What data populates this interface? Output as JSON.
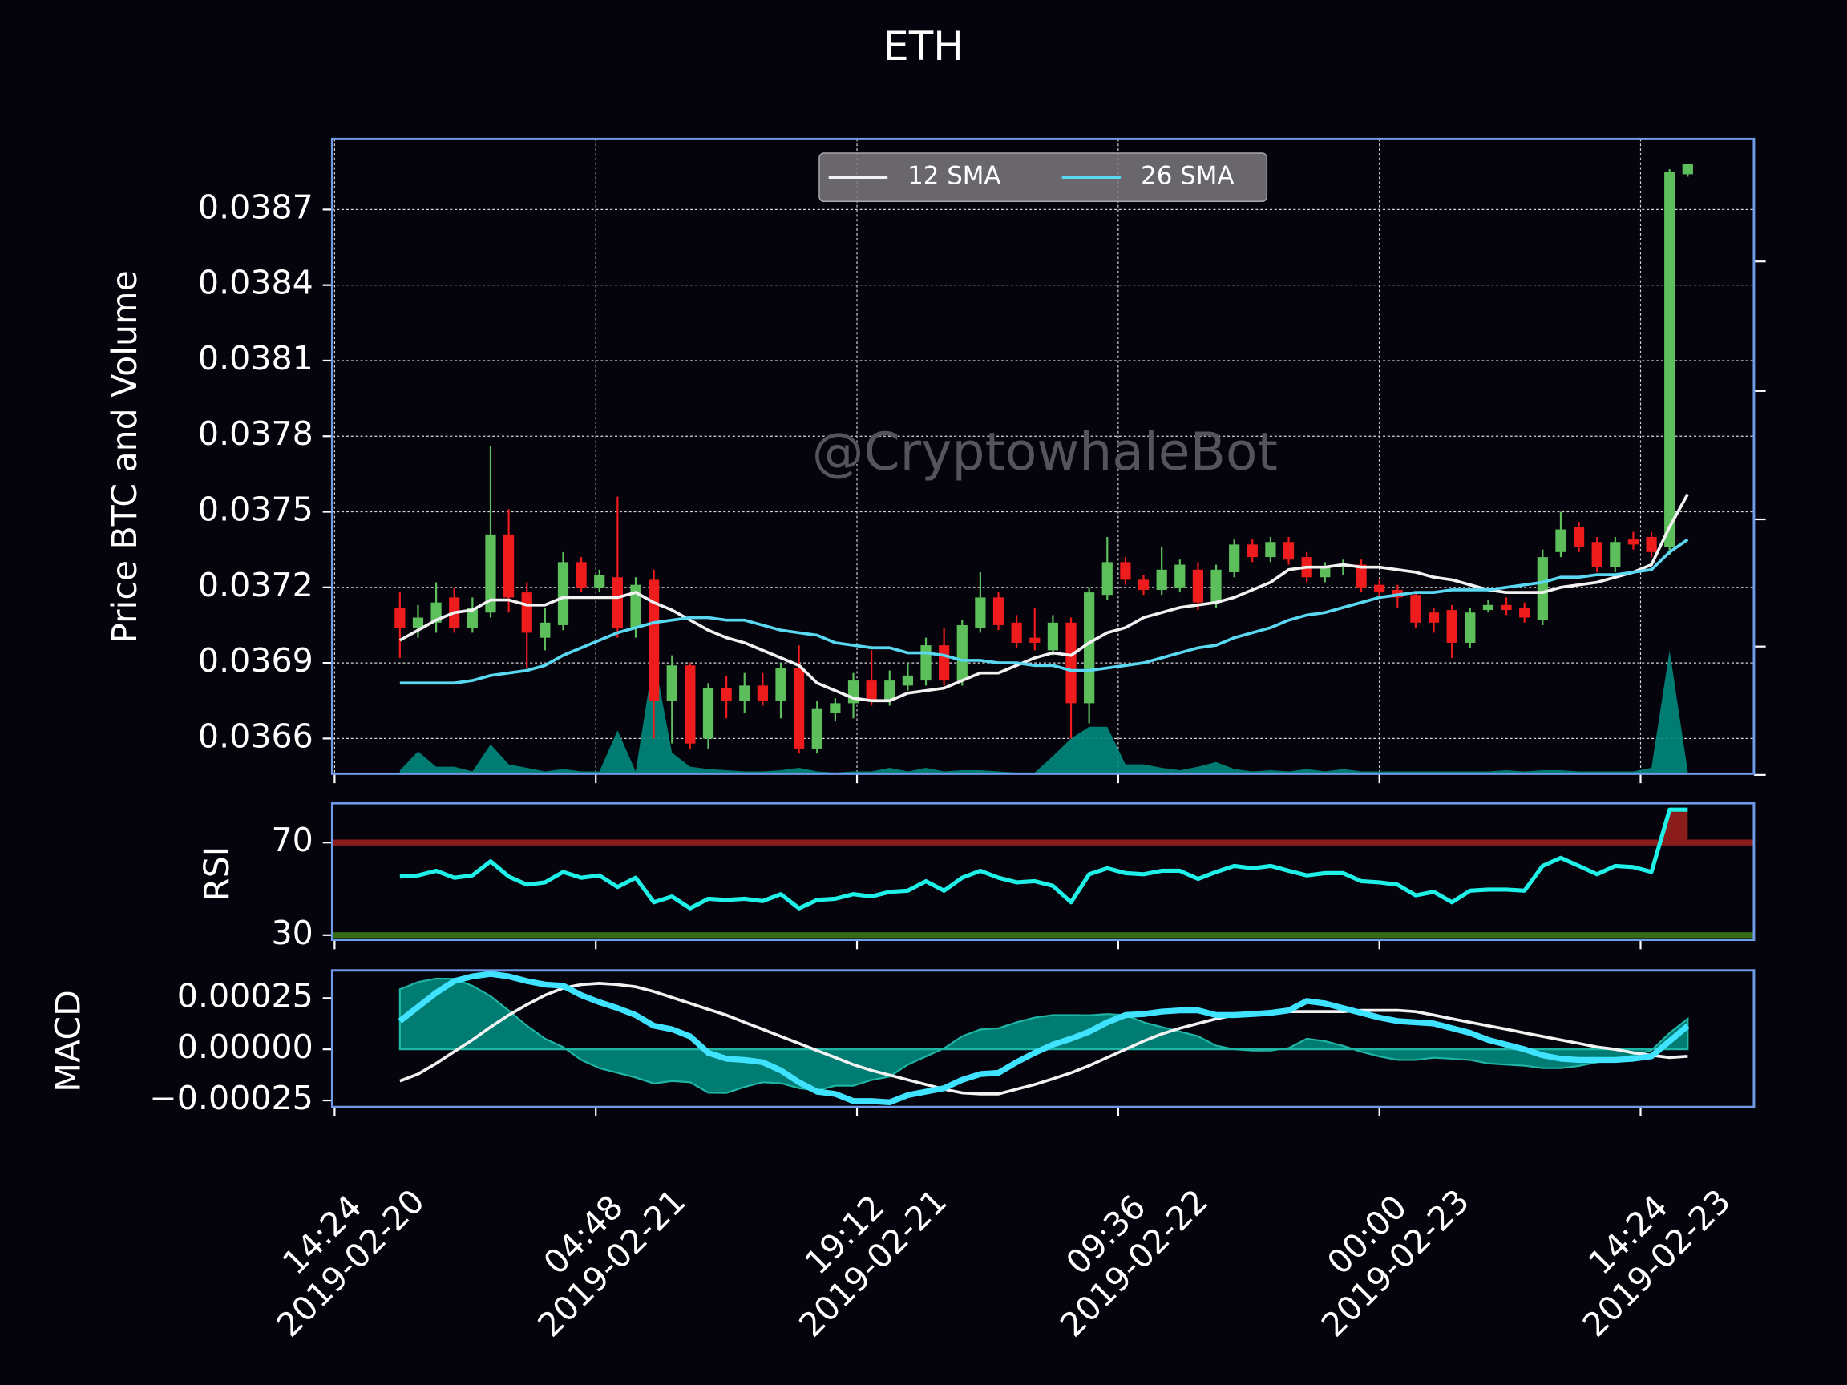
{
  "chart_data": [
    {
      "type": "candlestick",
      "title": "ETH",
      "ylabel": "Price BTC and Volume",
      "watermark": "@CryptowhaleBot",
      "x": [
        "2019-02-20 18:00",
        "2019-02-20 19:00",
        "2019-02-20 20:00",
        "2019-02-20 21:00",
        "2019-02-20 22:00",
        "2019-02-20 23:00",
        "2019-02-21 00:00",
        "2019-02-21 01:00",
        "2019-02-21 02:00",
        "2019-02-21 03:00",
        "2019-02-21 04:00",
        "2019-02-21 05:00",
        "2019-02-21 06:00",
        "2019-02-21 07:00",
        "2019-02-21 08:00",
        "2019-02-21 09:00",
        "2019-02-21 10:00",
        "2019-02-21 11:00",
        "2019-02-21 12:00",
        "2019-02-21 13:00",
        "2019-02-21 14:00",
        "2019-02-21 15:00",
        "2019-02-21 16:00",
        "2019-02-21 17:00",
        "2019-02-21 18:00",
        "2019-02-21 19:00",
        "2019-02-21 20:00",
        "2019-02-21 21:00",
        "2019-02-21 22:00",
        "2019-02-21 23:00",
        "2019-02-22 00:00",
        "2019-02-22 01:00",
        "2019-02-22 02:00",
        "2019-02-22 03:00",
        "2019-02-22 04:00",
        "2019-02-22 05:00",
        "2019-02-22 06:00",
        "2019-02-22 07:00",
        "2019-02-22 08:00",
        "2019-02-22 09:00",
        "2019-02-22 10:00",
        "2019-02-22 11:00",
        "2019-02-22 12:00",
        "2019-02-22 13:00",
        "2019-02-22 14:00",
        "2019-02-22 15:00",
        "2019-02-22 16:00",
        "2019-02-22 17:00",
        "2019-02-22 18:00",
        "2019-02-22 19:00",
        "2019-02-22 20:00",
        "2019-02-22 21:00",
        "2019-02-22 22:00",
        "2019-02-22 23:00",
        "2019-02-23 00:00",
        "2019-02-23 01:00",
        "2019-02-23 02:00",
        "2019-02-23 03:00",
        "2019-02-23 04:00",
        "2019-02-23 05:00",
        "2019-02-23 06:00",
        "2019-02-23 07:00",
        "2019-02-23 08:00",
        "2019-02-23 09:00",
        "2019-02-23 10:00",
        "2019-02-23 11:00",
        "2019-02-23 12:00",
        "2019-02-23 13:00",
        "2019-02-23 14:00",
        "2019-02-23 15:00",
        "2019-02-23 16:00",
        "2019-02-23 17:00"
      ],
      "open": [
        0.03712,
        0.03704,
        0.03706,
        0.03716,
        0.03704,
        0.0371,
        0.03741,
        0.03718,
        0.037,
        0.03705,
        0.0373,
        0.0372,
        0.03724,
        0.03704,
        0.03723,
        0.03675,
        0.03689,
        0.0366,
        0.0368,
        0.03675,
        0.03681,
        0.03675,
        0.03688,
        0.03656,
        0.0367,
        0.03674,
        0.03683,
        0.03675,
        0.03681,
        0.03683,
        0.03697,
        0.03683,
        0.03704,
        0.03716,
        0.03706,
        0.037,
        0.03695,
        0.03706,
        0.03674,
        0.03717,
        0.0373,
        0.03723,
        0.03719,
        0.0372,
        0.03727,
        0.03714,
        0.03726,
        0.03737,
        0.03732,
        0.03738,
        0.03732,
        0.03724,
        0.03728,
        0.03729,
        0.03721,
        0.03719,
        0.03717,
        0.0371,
        0.03711,
        0.03698,
        0.03711,
        0.03713,
        0.03712,
        0.03707,
        0.03734,
        0.03744,
        0.03738,
        0.03728,
        0.03739,
        0.0374,
        0.03736,
        0.03884
      ],
      "high": [
        0.03718,
        0.03713,
        0.03722,
        0.0372,
        0.03716,
        0.03776,
        0.03751,
        0.03722,
        0.03712,
        0.03734,
        0.03732,
        0.03727,
        0.03756,
        0.03724,
        0.03727,
        0.03693,
        0.0369,
        0.03682,
        0.03685,
        0.03686,
        0.03686,
        0.0369,
        0.03697,
        0.03675,
        0.03676,
        0.03686,
        0.03695,
        0.03687,
        0.0369,
        0.037,
        0.03704,
        0.03707,
        0.03726,
        0.03718,
        0.03709,
        0.03712,
        0.03709,
        0.03708,
        0.0372,
        0.0374,
        0.03732,
        0.03725,
        0.03736,
        0.03731,
        0.0373,
        0.03729,
        0.03739,
        0.03739,
        0.0374,
        0.0374,
        0.03734,
        0.0373,
        0.03731,
        0.03731,
        0.03723,
        0.03721,
        0.03718,
        0.03712,
        0.03713,
        0.03712,
        0.03715,
        0.03716,
        0.03714,
        0.03735,
        0.0375,
        0.03746,
        0.0374,
        0.0374,
        0.03742,
        0.03742,
        0.03886,
        0.03888
      ],
      "low": [
        0.03692,
        0.037,
        0.03702,
        0.03702,
        0.03702,
        0.03708,
        0.0371,
        0.03688,
        0.03695,
        0.03703,
        0.03718,
        0.03718,
        0.037,
        0.037,
        0.0366,
        0.03658,
        0.03656,
        0.03656,
        0.03668,
        0.0367,
        0.03673,
        0.03668,
        0.03654,
        0.03654,
        0.03667,
        0.03668,
        0.03673,
        0.03673,
        0.03679,
        0.03681,
        0.03681,
        0.03681,
        0.03702,
        0.03703,
        0.03696,
        0.03695,
        0.03693,
        0.0366,
        0.03666,
        0.03715,
        0.03721,
        0.03717,
        0.03717,
        0.03718,
        0.03711,
        0.03712,
        0.03724,
        0.0373,
        0.0373,
        0.03729,
        0.03722,
        0.03722,
        0.03725,
        0.03718,
        0.03716,
        0.03712,
        0.03704,
        0.03702,
        0.03692,
        0.03696,
        0.0371,
        0.03709,
        0.03706,
        0.03705,
        0.03732,
        0.03734,
        0.03726,
        0.03726,
        0.03735,
        0.03732,
        0.03733,
        0.03883
      ],
      "close": [
        0.03704,
        0.03708,
        0.03714,
        0.03704,
        0.03712,
        0.03741,
        0.03716,
        0.03702,
        0.03706,
        0.0373,
        0.0372,
        0.03725,
        0.03704,
        0.03721,
        0.03675,
        0.03689,
        0.03658,
        0.0368,
        0.03675,
        0.03681,
        0.03675,
        0.03688,
        0.03656,
        0.03672,
        0.03674,
        0.03683,
        0.03675,
        0.03683,
        0.03685,
        0.03697,
        0.03683,
        0.03705,
        0.03716,
        0.03705,
        0.03698,
        0.03698,
        0.03706,
        0.03674,
        0.03718,
        0.0373,
        0.03723,
        0.03719,
        0.03727,
        0.03729,
        0.03714,
        0.03727,
        0.03737,
        0.03732,
        0.03738,
        0.03731,
        0.03724,
        0.03728,
        0.03729,
        0.0372,
        0.03718,
        0.03716,
        0.03706,
        0.03706,
        0.03698,
        0.0371,
        0.03713,
        0.03711,
        0.03708,
        0.03732,
        0.03743,
        0.03736,
        0.03728,
        0.03738,
        0.03737,
        0.03734,
        0.03885,
        0.03888
      ],
      "up_color": "#5cbf5c",
      "down_color": "#ee1c1c",
      "series": [
        {
          "name": "12 SMA",
          "color": "#f2f2f2",
          "values": [
            0.03699,
            0.03703,
            0.03707,
            0.0371,
            0.03711,
            0.03715,
            0.03715,
            0.03713,
            0.03713,
            0.03716,
            0.03716,
            0.03716,
            0.03716,
            0.03718,
            0.03714,
            0.03711,
            0.03707,
            0.03703,
            0.037,
            0.03698,
            0.03695,
            0.03692,
            0.03689,
            0.03682,
            0.03679,
            0.03676,
            0.03675,
            0.03675,
            0.03678,
            0.03679,
            0.0368,
            0.03683,
            0.03686,
            0.03686,
            0.03689,
            0.03692,
            0.03694,
            0.03693,
            0.03698,
            0.03702,
            0.03704,
            0.03708,
            0.0371,
            0.03712,
            0.03713,
            0.03714,
            0.03716,
            0.03719,
            0.03722,
            0.03727,
            0.03728,
            0.03728,
            0.03729,
            0.03728,
            0.03728,
            0.03727,
            0.03726,
            0.03724,
            0.03723,
            0.03721,
            0.03719,
            0.03718,
            0.03718,
            0.03718,
            0.0372,
            0.03721,
            0.03722,
            0.03724,
            0.03726,
            0.03729,
            0.03744,
            0.03757
          ]
        },
        {
          "name": "26 SMA",
          "color": "#5ad8f2",
          "values": [
            0.03682,
            0.03682,
            0.03682,
            0.03682,
            0.03683,
            0.03685,
            0.03686,
            0.03687,
            0.03689,
            0.03693,
            0.03696,
            0.03699,
            0.03702,
            0.03704,
            0.03706,
            0.03707,
            0.03708,
            0.03708,
            0.03707,
            0.03707,
            0.03705,
            0.03703,
            0.03702,
            0.03701,
            0.03698,
            0.03697,
            0.03696,
            0.03696,
            0.03694,
            0.03694,
            0.03693,
            0.03691,
            0.03691,
            0.0369,
            0.0369,
            0.03689,
            0.03689,
            0.03687,
            0.03687,
            0.03688,
            0.03689,
            0.0369,
            0.03692,
            0.03694,
            0.03696,
            0.03697,
            0.037,
            0.03702,
            0.03704,
            0.03707,
            0.03709,
            0.0371,
            0.03712,
            0.03714,
            0.03716,
            0.03717,
            0.03718,
            0.03718,
            0.03719,
            0.03719,
            0.03719,
            0.0372,
            0.03721,
            0.03722,
            0.03724,
            0.03724,
            0.03725,
            0.03725,
            0.03726,
            0.03727,
            0.03734,
            0.03739
          ]
        }
      ],
      "volume": {
        "color": "#00897e",
        "axis": "y2",
        "values": [
          3,
          19,
          6,
          6,
          2,
          25,
          8,
          5,
          2,
          4,
          2,
          2,
          37,
          2,
          100,
          18,
          6,
          4,
          3,
          2,
          2,
          3,
          5,
          2,
          1,
          2,
          2,
          5,
          2,
          5,
          2,
          3,
          3,
          2,
          1,
          1,
          15,
          30,
          40,
          40,
          8,
          8,
          5,
          3,
          6,
          10,
          4,
          2,
          3,
          2,
          4,
          2,
          4,
          2,
          2,
          2,
          2,
          2,
          2,
          2,
          2,
          3,
          2,
          3,
          3,
          2,
          2,
          2,
          2,
          5,
          105,
          2
        ]
      },
      "y2lim": [
        0,
        540
      ],
      "xlim": [
        "2019-02-20 14:16",
        "2019-02-23 20:39"
      ],
      "xticks": [
        {
          "value": "2019-02-20 14:24",
          "label": [
            "14:24",
            "2019-02-20"
          ]
        },
        {
          "value": "2019-02-21 04:48",
          "label": [
            "04:48",
            "2019-02-21"
          ]
        },
        {
          "value": "2019-02-21 19:12",
          "label": [
            "19:12",
            "2019-02-21"
          ]
        },
        {
          "value": "2019-02-22 09:36",
          "label": [
            "09:36",
            "2019-02-22"
          ]
        },
        {
          "value": "2019-02-23 00:00",
          "label": [
            "00:00",
            "2019-02-23"
          ]
        },
        {
          "value": "2019-02-23 14:24",
          "label": [
            "14:24",
            "2019-02-23"
          ]
        }
      ],
      "ylim": [
        0.03646,
        0.03898
      ],
      "yticks": [
        0.0366,
        0.0369,
        0.0372,
        0.0375,
        0.0378,
        0.0381,
        0.0384,
        0.0387
      ],
      "grid": true,
      "legend": "upper center"
    },
    {
      "type": "line",
      "ylabel": "RSI",
      "color": "#1ff0e8",
      "values": [
        55.3,
        55.8,
        57.8,
        54.8,
        55.8,
        61.9,
        55.3,
        51.8,
        52.8,
        57.3,
        54.8,
        55.8,
        50.8,
        54.8,
        44.2,
        46.7,
        41.6,
        45.7,
        45.2,
        45.7,
        44.7,
        47.7,
        41.6,
        45.2,
        45.7,
        47.7,
        46.7,
        48.7,
        49.2,
        53.3,
        49.2,
        54.8,
        57.8,
        54.8,
        52.8,
        53.3,
        51.3,
        44.2,
        56.3,
        58.9,
        56.8,
        56.3,
        57.8,
        57.8,
        54.3,
        57.3,
        59.9,
        58.9,
        59.9,
        57.8,
        55.8,
        56.8,
        56.8,
        53.3,
        52.8,
        51.8,
        47.2,
        48.7,
        44.2,
        49.2,
        49.7,
        49.7,
        49.2,
        59.9,
        63.4,
        59.9,
        56.3,
        59.9,
        59.4,
        57.3,
        84.2,
        84.2
      ],
      "ylim": [
        28,
        87
      ],
      "yticks": [
        30,
        70
      ],
      "hlines": [
        {
          "value": 70,
          "color": "#8b1c1c"
        },
        {
          "value": 30,
          "color": "#356b16"
        }
      ],
      "over_fill_color": "#8b1c1c"
    },
    {
      "type": "line",
      "ylabel": "MACD",
      "color": "#3fe3ff",
      "signal_color": "#f2f2f2",
      "histogram_color": "#00897e",
      "values": [
        0.000138,
        0.000207,
        0.000276,
        0.000333,
        0.000356,
        0.000368,
        0.000356,
        0.000333,
        0.000316,
        0.00031,
        0.000264,
        0.00023,
        0.000201,
        0.000167,
        0.000115,
        9.8e-05,
        6.3e-05,
        -1.7e-05,
        -4.6e-05,
        -5.2e-05,
        -6.3e-05,
        -0.000103,
        -0.000161,
        -0.000207,
        -0.000218,
        -0.000253,
        -0.000253,
        -0.000259,
        -0.000224,
        -0.000207,
        -0.00019,
        -0.000149,
        -0.000121,
        -0.000115,
        -6.3e-05,
        -1.7e-05,
        2.3e-05,
        5.2e-05,
        8.6e-05,
        0.000132,
        0.000167,
        0.000172,
        0.000184,
        0.00019,
        0.00019,
        0.000167,
        0.000167,
        0.000172,
        0.000178,
        0.00019,
        0.000236,
        0.000224,
        0.000201,
        0.000178,
        0.000155,
        0.000138,
        0.000132,
        0.000126,
        0.000103,
        8e-05,
        4.6e-05,
        2.3e-05,
        0,
        -2.9e-05,
        -4.6e-05,
        -5.2e-05,
        -5.2e-05,
        -5.2e-05,
        -4.6e-05,
        -3.4e-05,
        4e-05,
        0.000115
      ],
      "signal": [
        -0.000155,
        -0.000121,
        -6.9e-05,
        -1.1e-05,
        4.6e-05,
        0.000109,
        0.000167,
        0.000218,
        0.000264,
        0.000299,
        0.000316,
        0.000322,
        0.000316,
        0.000305,
        0.000282,
        0.000253,
        0.000224,
        0.000195,
        0.000167,
        0.000132,
        9.8e-05,
        6.3e-05,
        2.9e-05,
        -6e-06,
        -4e-05,
        -7.5e-05,
        -0.000103,
        -0.000126,
        -0.000149,
        -0.000172,
        -0.000195,
        -0.000213,
        -0.000218,
        -0.000218,
        -0.000195,
        -0.000172,
        -0.000144,
        -0.000115,
        -8e-05,
        -4e-05,
        0,
        4e-05,
        7.5e-05,
        0.000103,
        0.000126,
        0.000149,
        0.000167,
        0.000178,
        0.000184,
        0.000184,
        0.000184,
        0.000184,
        0.000184,
        0.00019,
        0.00019,
        0.00019,
        0.000184,
        0.000167,
        0.000149,
        0.000132,
        0.000115,
        9.8e-05,
        8e-05,
        6.3e-05,
        4.6e-05,
        2.9e-05,
        1.1e-05,
        0,
        -1.7e-05,
        -2.9e-05,
        -4e-05,
        -3.4e-05
      ],
      "histogram": [
        0.000293,
        0.000328,
        0.000345,
        0.000344,
        0.00031,
        0.000259,
        0.000189,
        0.000115,
        5.2e-05,
        1.1e-05,
        -5.2e-05,
        -9.2e-05,
        -0.000115,
        -0.000138,
        -0.000167,
        -0.000155,
        -0.000161,
        -0.000212,
        -0.000213,
        -0.000184,
        -0.000161,
        -0.000166,
        -0.00019,
        -0.000201,
        -0.000178,
        -0.000178,
        -0.00015,
        -0.000133,
        -7.5e-05,
        -3.5e-05,
        5e-06,
        6.4e-05,
        9.7e-05,
        0.000103,
        0.000132,
        0.000155,
        0.000167,
        0.000167,
        0.000166,
        0.000172,
        0.000167,
        0.000132,
        0.000109,
        8.7e-05,
        6.4e-05,
        1.8e-05,
        0,
        -6e-06,
        -6e-06,
        6e-06,
        5.2e-05,
        4e-05,
        1.7e-05,
        -1.2e-05,
        -3.5e-05,
        -5.2e-05,
        -5.2e-05,
        -4.1e-05,
        -4.6e-05,
        -5.2e-05,
        -6.9e-05,
        -7.5e-05,
        -8e-05,
        -9.2e-05,
        -9.2e-05,
        -8.1e-05,
        -6.3e-05,
        -5.2e-05,
        -2.9e-05,
        -5e-06,
        8e-05,
        0.000149
      ],
      "ylim": [
        -0.000282,
        0.000385
      ],
      "yticks": [
        {
          "value": -0.00025,
          "label": "−0.00025"
        },
        {
          "value": 0,
          "label": "0.00000"
        },
        0.00025
      ]
    }
  ]
}
